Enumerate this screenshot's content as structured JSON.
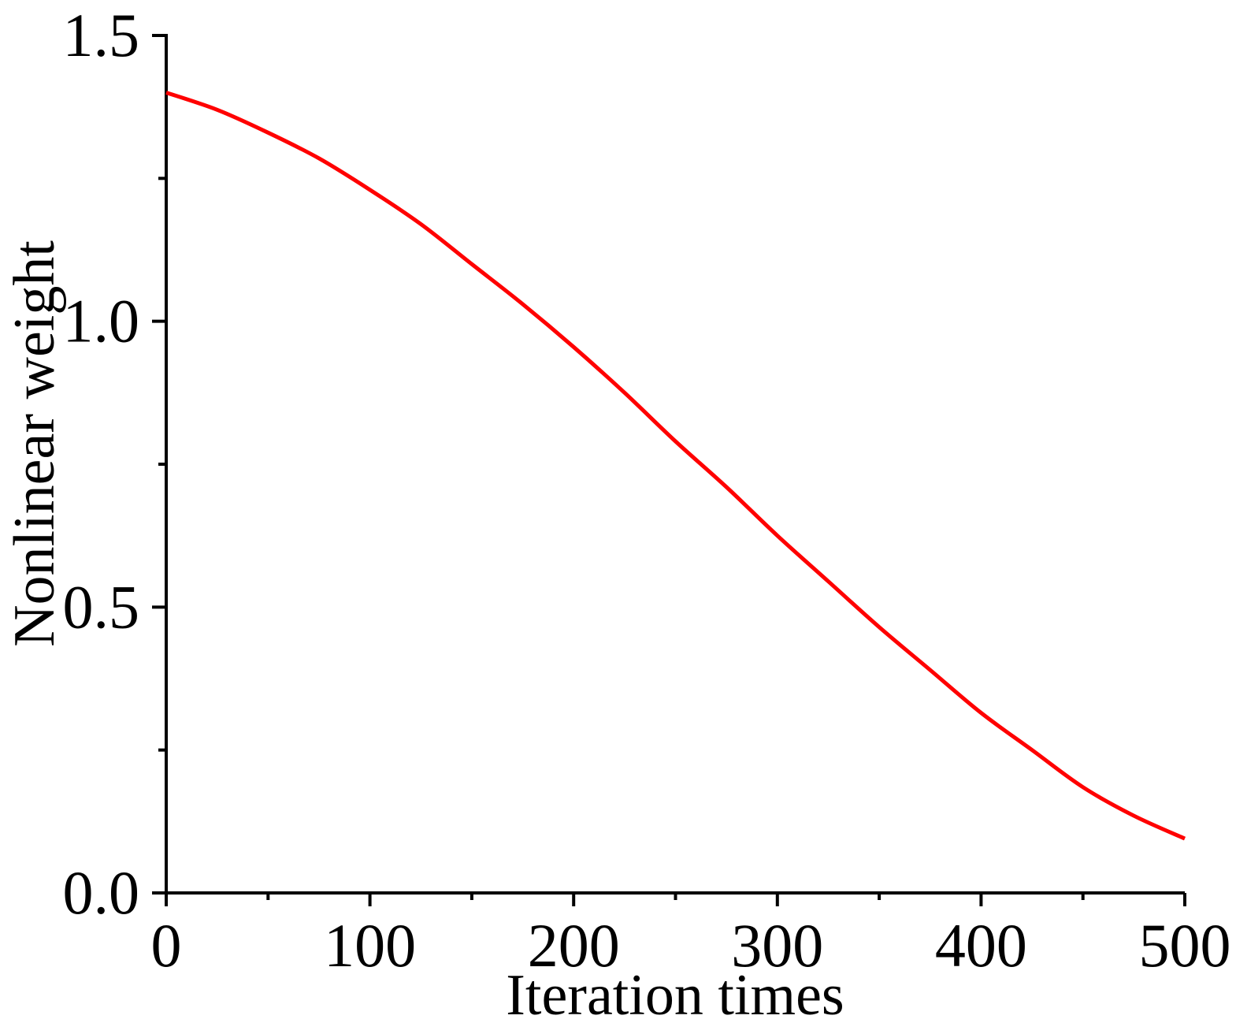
{
  "chart_data": {
    "type": "line",
    "title": "",
    "xlabel": "Iteration times",
    "ylabel": "Nonlinear weight",
    "xlim": [
      0,
      500
    ],
    "ylim": [
      0,
      1.5
    ],
    "x_ticks": [
      0,
      100,
      200,
      300,
      400,
      500
    ],
    "x_tick_labels": [
      "0",
      "100",
      "200",
      "300",
      "400",
      "500"
    ],
    "x_minor_ticks": [
      50,
      150,
      250,
      350,
      450
    ],
    "y_ticks": [
      0,
      0.5,
      1.0,
      1.5
    ],
    "y_tick_labels": [
      "0.0",
      "0.5",
      "1.0",
      "1.5"
    ],
    "y_minor_ticks": [
      0.25,
      0.75,
      1.25
    ],
    "grid": false,
    "legend": "none",
    "series": [
      {
        "color": "#ff0000",
        "x": [
          0,
          25,
          50,
          75,
          100,
          125,
          150,
          175,
          200,
          225,
          250,
          275,
          300,
          325,
          350,
          375,
          400,
          425,
          450,
          475,
          500
        ],
        "y": [
          1.4,
          1.37,
          1.33,
          1.285,
          1.23,
          1.17,
          1.1,
          1.03,
          0.955,
          0.875,
          0.79,
          0.71,
          0.625,
          0.545,
          0.465,
          0.39,
          0.315,
          0.25,
          0.185,
          0.135,
          0.095
        ]
      }
    ]
  }
}
